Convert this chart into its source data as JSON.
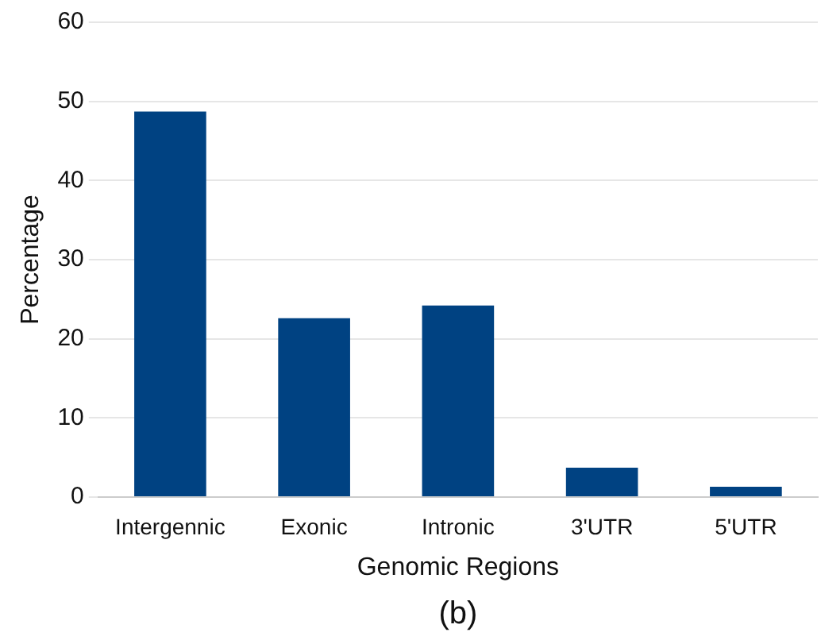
{
  "chart_data": {
    "type": "bar",
    "xlabel": "Genomic Regions",
    "ylabel": "Percentage",
    "annotations": [
      "(b)"
    ],
    "categories": [
      "Intergennic",
      "Exonic",
      "Intronic",
      "3'UTR",
      "5'UTR"
    ],
    "values": [
      48.7,
      22.6,
      24.2,
      3.7,
      1.3
    ],
    "color": "#004282",
    "ylim": [
      0,
      60
    ],
    "yticks": [
      0,
      10,
      20,
      30,
      40,
      50,
      60
    ],
    "grid": "y",
    "legend": false
  }
}
